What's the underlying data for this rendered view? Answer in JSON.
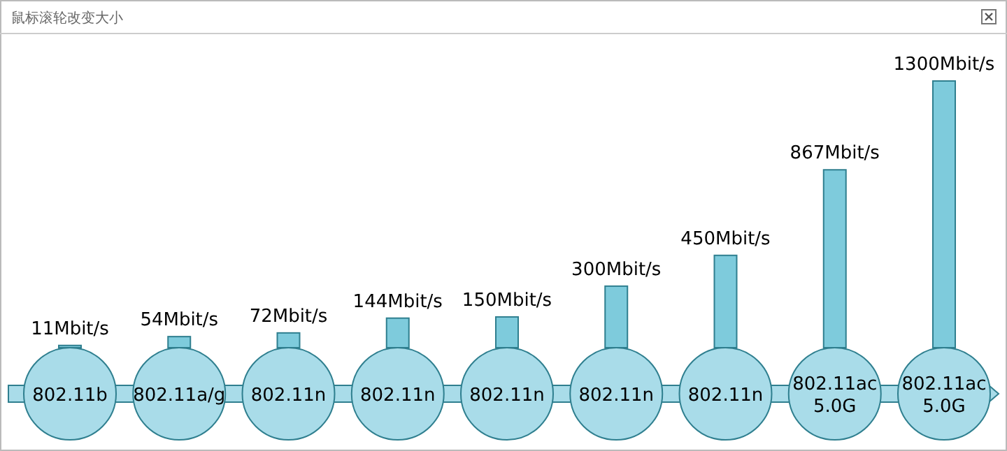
{
  "chart_data": {
    "type": "bar",
    "title": "鼠标滚轮改变大小",
    "categories": [
      "802.11b",
      "802.11a/g",
      "802.11n",
      "802.11n",
      "802.11n",
      "802.11n",
      "802.11n",
      "802.11ac 5.0G",
      "802.11ac 5.0G"
    ],
    "values": [
      11,
      54,
      72,
      144,
      150,
      300,
      450,
      867,
      1300
    ],
    "value_labels": [
      "11Mbit/s",
      "54Mbit/s",
      "72Mbit/s",
      "144Mbit/s",
      "150Mbit/s",
      "300Mbit/s",
      "450Mbit/s",
      "867Mbit/s",
      "1300Mbit/s"
    ],
    "color": "#7ecbdc"
  }
}
